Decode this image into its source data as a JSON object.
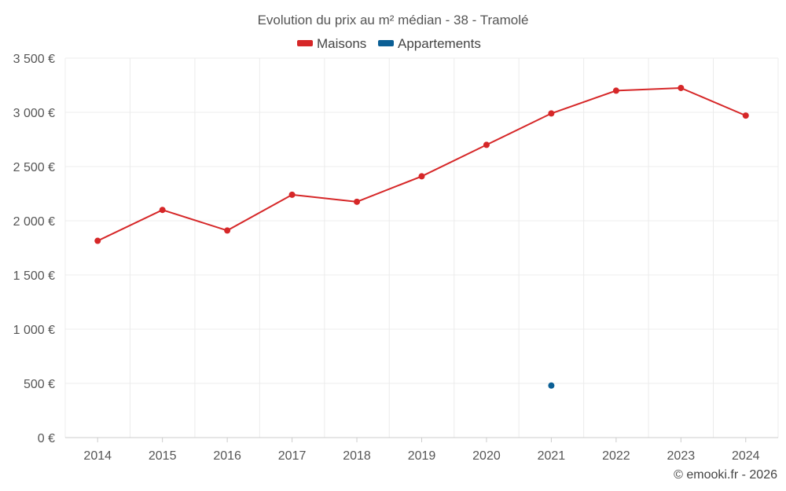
{
  "chart_data": {
    "type": "line",
    "title": "Evolution du prix au m² médian - 38 - Tramolé",
    "categories": [
      "2014",
      "2015",
      "2016",
      "2017",
      "2018",
      "2019",
      "2020",
      "2021",
      "2022",
      "2023",
      "2024"
    ],
    "series": [
      {
        "name": "Maisons",
        "color": "#d62728",
        "values": [
          1815,
          2100,
          1910,
          2240,
          2175,
          2410,
          2700,
          2990,
          3200,
          3225,
          2970
        ]
      },
      {
        "name": "Appartements",
        "color": "#0b5f95",
        "values": [
          null,
          null,
          null,
          null,
          null,
          null,
          null,
          480,
          null,
          null,
          null
        ]
      }
    ],
    "y_ticks": [
      {
        "value": 0,
        "label": "0 €"
      },
      {
        "value": 500,
        "label": "500 €"
      },
      {
        "value": 1000,
        "label": "1 000 €"
      },
      {
        "value": 1500,
        "label": "1 500 €"
      },
      {
        "value": 2000,
        "label": "2 000 €"
      },
      {
        "value": 2500,
        "label": "2 500 €"
      },
      {
        "value": 3000,
        "label": "3 000 €"
      },
      {
        "value": 3500,
        "label": "3 500 €"
      }
    ],
    "ylim": [
      0,
      3500
    ],
    "xlabel": "",
    "ylabel": "",
    "grid": true,
    "legend": "top-center"
  },
  "credit": "© emooki.fr - 2026"
}
